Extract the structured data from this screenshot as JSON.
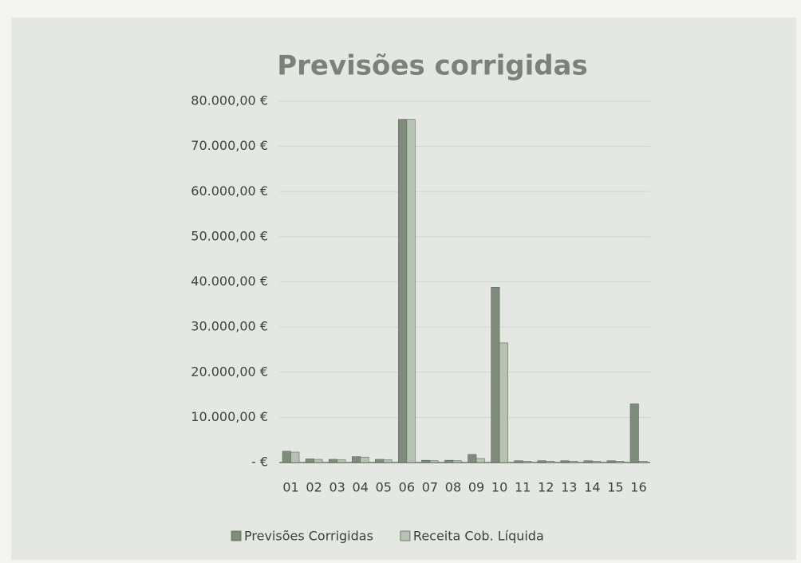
{
  "chart_data": {
    "type": "bar",
    "title": "Previsões corrigidas",
    "categories": [
      "01",
      "02",
      "03",
      "04",
      "05",
      "06",
      "07",
      "08",
      "09",
      "10",
      "11",
      "12",
      "13",
      "14",
      "15",
      "16"
    ],
    "series": [
      {
        "name": "Previsões Corrigidas",
        "color": "#7d8c7b",
        "values": [
          2500,
          800,
          700,
          1300,
          700,
          76000,
          500,
          500,
          1800,
          38800,
          400,
          400,
          400,
          400,
          400,
          13000
        ]
      },
      {
        "name": "Receita Cob. Líquida",
        "color": "#b7c3b2",
        "values": [
          2300,
          700,
          600,
          1200,
          600,
          76000,
          400,
          400,
          900,
          26500,
          300,
          300,
          300,
          300,
          300,
          300
        ]
      }
    ],
    "ylim": [
      0,
      80000
    ],
    "yticks": [
      {
        "value": 0,
        "label": "- €"
      },
      {
        "value": 10000,
        "label": "10.000,00 €"
      },
      {
        "value": 20000,
        "label": "20.000,00 €"
      },
      {
        "value": 30000,
        "label": "30.000,00 €"
      },
      {
        "value": 40000,
        "label": "40.000,00 €"
      },
      {
        "value": 50000,
        "label": "50.000,00 €"
      },
      {
        "value": 60000,
        "label": "60.000,00 €"
      },
      {
        "value": 70000,
        "label": "70.000,00 €"
      },
      {
        "value": 80000,
        "label": "80.000,00 €"
      }
    ],
    "grid": true,
    "legend": "bottom"
  }
}
